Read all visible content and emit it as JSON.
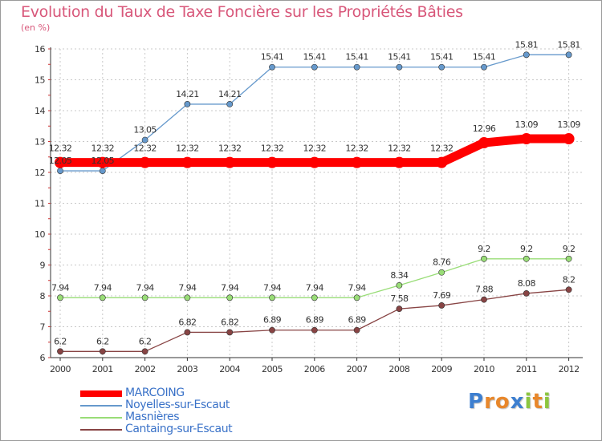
{
  "title": "Evolution du Taux de Taxe Foncière sur les Propriétés Bâties",
  "unit_label": "(en %)",
  "brand": {
    "letters": [
      "P",
      "r",
      "o",
      "x",
      "i",
      "t",
      "i"
    ],
    "colors": [
      "#3d7fd0",
      "#e8872b",
      "#e8872b",
      "#3d7fd0",
      "#8cc63f",
      "#e8872b",
      "#8cc63f"
    ]
  },
  "chart_data": {
    "type": "line",
    "title": "Evolution du Taux de Taxe Foncière sur les Propriétés Bâties",
    "ylabel": "(en %)",
    "xlabel": "",
    "x": [
      "2000",
      "2001",
      "2002",
      "2003",
      "2004",
      "2005",
      "2006",
      "2007",
      "2008",
      "2009",
      "2010",
      "2011",
      "2012"
    ],
    "ylim": [
      6,
      16
    ],
    "yticks": [
      "6",
      "7",
      "8",
      "9",
      "10",
      "11",
      "12",
      "13",
      "14",
      "15",
      "16"
    ],
    "grid": true,
    "legend": "bottom-left",
    "series": [
      {
        "name": "MARCOING",
        "color": "#ff0000",
        "style": "bold",
        "values": [
          12.32,
          12.32,
          12.32,
          12.32,
          12.32,
          12.32,
          12.32,
          12.32,
          12.32,
          12.32,
          12.96,
          13.09,
          13.09
        ],
        "labels": [
          "12.32",
          "12.32",
          "12.32",
          "12.32",
          "12.32",
          "12.32",
          "12.32",
          "12.32",
          "12.32",
          "12.32",
          "12.96",
          "13.09",
          "13.09"
        ]
      },
      {
        "name": "Noyelles-sur-Escaut",
        "color": "#6699cc",
        "style": "thin",
        "values": [
          12.05,
          12.05,
          13.05,
          14.21,
          14.21,
          15.41,
          15.41,
          15.41,
          15.41,
          15.41,
          15.41,
          15.81,
          15.81
        ],
        "labels": [
          "12.05",
          "12.05",
          "13.05",
          "14.21",
          "14.21",
          "15.41",
          "15.41",
          "15.41",
          "15.41",
          "15.41",
          "15.41",
          "15.81",
          "15.81"
        ]
      },
      {
        "name": "Masnières",
        "color": "#99dd77",
        "style": "thin",
        "values": [
          7.94,
          7.94,
          7.94,
          7.94,
          7.94,
          7.94,
          7.94,
          7.94,
          8.34,
          8.76,
          9.2,
          9.2,
          9.2
        ],
        "labels": [
          "7.94",
          "7.94",
          "7.94",
          "7.94",
          "7.94",
          "7.94",
          "7.94",
          "7.94",
          "8.34",
          "8.76",
          "9.2",
          "9.2",
          "9.2"
        ]
      },
      {
        "name": "Cantaing-sur-Escaut",
        "color": "#884444",
        "style": "thin",
        "values": [
          6.2,
          6.2,
          6.2,
          6.82,
          6.82,
          6.89,
          6.89,
          6.89,
          7.58,
          7.69,
          7.88,
          8.08,
          8.2
        ],
        "labels": [
          "6.2",
          "6.2",
          "6.2",
          "6.82",
          "6.82",
          "6.89",
          "6.89",
          "6.89",
          "7.58",
          "7.69",
          "7.88",
          "8.08",
          "8.2"
        ]
      }
    ]
  }
}
